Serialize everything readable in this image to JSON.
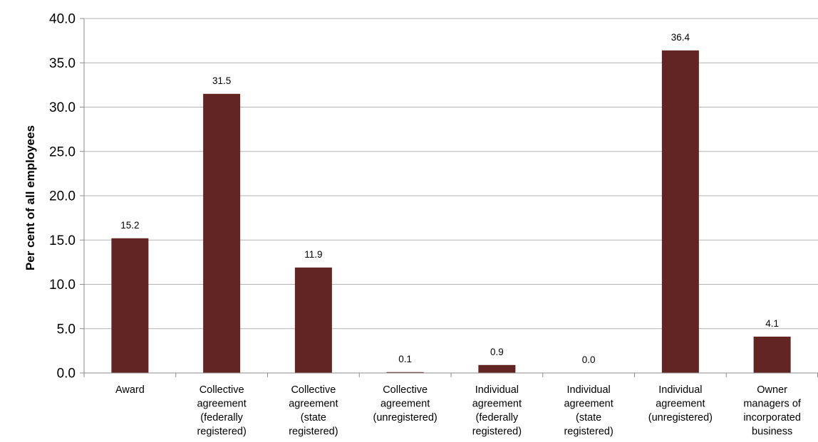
{
  "chart_data": {
    "type": "bar",
    "categories": [
      [
        "Award"
      ],
      [
        "Collective",
        "agreement",
        "(federally",
        "registered)"
      ],
      [
        "Collective",
        "agreement",
        "(state",
        "registered)"
      ],
      [
        "Collective",
        "agreement",
        "(unregistered)"
      ],
      [
        "Individual",
        "agreement",
        "(federally",
        "registered)"
      ],
      [
        "Individual",
        "agreement",
        "(state",
        "registered)"
      ],
      [
        "Individual",
        "agreement",
        "(unregistered)"
      ],
      [
        "Owner",
        "managers of",
        "incorporated",
        "business"
      ]
    ],
    "values": [
      15.2,
      31.5,
      11.9,
      0.1,
      0.9,
      0.0,
      36.4,
      4.1
    ],
    "data_labels": [
      "15.2",
      "31.5",
      "11.9",
      "0.1",
      "0.9",
      "0.0",
      "36.4",
      "4.1"
    ],
    "yticks": [
      "0.0",
      "5.0",
      "10.0",
      "15.0",
      "20.0",
      "25.0",
      "30.0",
      "35.0",
      "40.0"
    ],
    "ylim": [
      0,
      40
    ],
    "ylabel": "Per cent of all employees",
    "xlabel": "",
    "title": "",
    "grid": true,
    "legend": "none",
    "bar_color": "#632523"
  }
}
